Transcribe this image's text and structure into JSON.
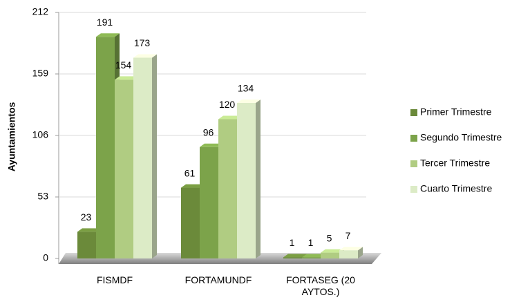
{
  "chart_data": {
    "type": "bar3d",
    "y_label": "Ayuntamientos",
    "categories": [
      "FISMDF",
      "FORTAMUNDF",
      "FORTASEG (20 AYTOS.)"
    ],
    "series": [
      {
        "name": "Primer Trimestre",
        "color": "#6b8a3a",
        "values": [
          23,
          61,
          1
        ]
      },
      {
        "name": "Segundo Trimestre",
        "color": "#7ca34a",
        "values": [
          191,
          96,
          1
        ]
      },
      {
        "name": "Tercer Trimestre",
        "color": "#b0cc82",
        "values": [
          154,
          120,
          5
        ]
      },
      {
        "name": "Cuarto Trimestre",
        "color": "#dcebc6",
        "values": [
          173,
          134,
          7
        ]
      }
    ],
    "ylim": [
      0,
      212
    ],
    "yticks": [
      0,
      53,
      106,
      159,
      212
    ],
    "grid": true,
    "legend": "right"
  }
}
